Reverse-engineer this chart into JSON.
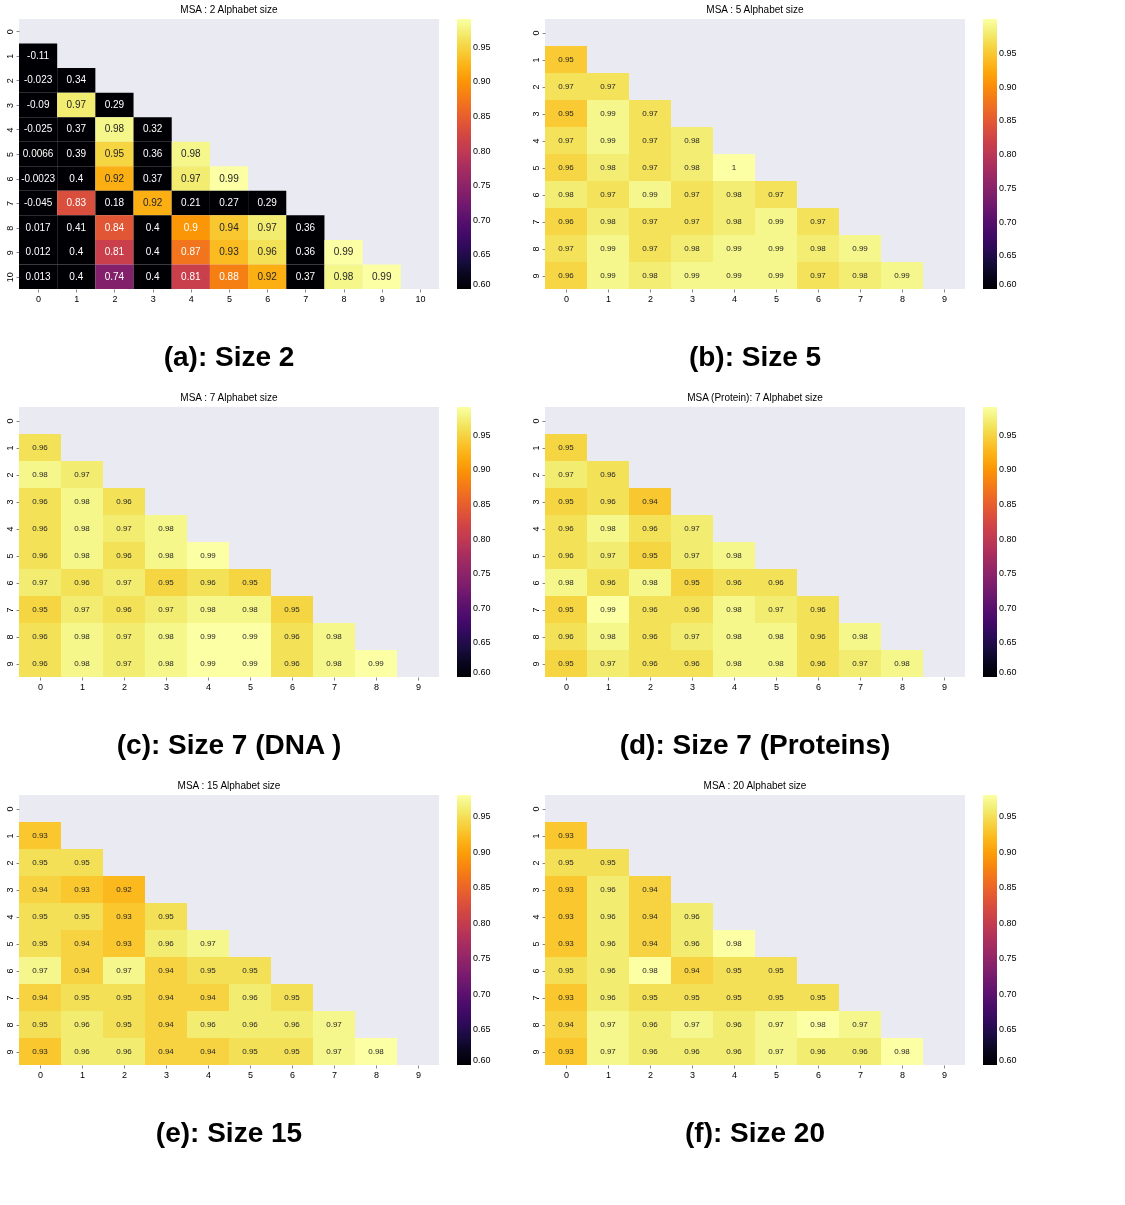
{
  "chart_data": [
    {
      "type": "heatmap",
      "title": "MSA : 2 Alphabet size",
      "annotations": [
        "(a): Size 2"
      ],
      "categories": [
        "0",
        "1",
        "2",
        "3",
        "4",
        "5",
        "6",
        "7",
        "8",
        "9",
        "10"
      ],
      "y_categories": [
        "0",
        "1",
        "2",
        "3",
        "4",
        "5",
        "6",
        "7",
        "8",
        "9",
        "10"
      ],
      "cells": [
        [
          null,
          null,
          null,
          null,
          null,
          null,
          null,
          null,
          null,
          null,
          null
        ],
        [
          -0.11,
          null,
          null,
          null,
          null,
          null,
          null,
          null,
          null,
          null,
          null
        ],
        [
          -0.023,
          0.34,
          null,
          null,
          null,
          null,
          null,
          null,
          null,
          null,
          null
        ],
        [
          -0.09,
          0.97,
          0.29,
          null,
          null,
          null,
          null,
          null,
          null,
          null,
          null
        ],
        [
          -0.025,
          0.37,
          0.98,
          0.32,
          null,
          null,
          null,
          null,
          null,
          null,
          null
        ],
        [
          0.0066,
          0.39,
          0.95,
          0.36,
          0.98,
          null,
          null,
          null,
          null,
          null,
          null
        ],
        [
          -0.0023,
          0.4,
          0.92,
          0.37,
          0.97,
          0.99,
          null,
          null,
          null,
          null,
          null
        ],
        [
          -0.045,
          0.83,
          0.18,
          0.92,
          0.21,
          0.27,
          0.29,
          null,
          null,
          null,
          null
        ],
        [
          0.017,
          0.41,
          0.84,
          0.4,
          0.9,
          0.94,
          0.97,
          0.36,
          null,
          null,
          null
        ],
        [
          0.012,
          0.4,
          0.81,
          0.4,
          0.87,
          0.93,
          0.96,
          0.36,
          0.99,
          null,
          null
        ],
        [
          0.013,
          0.4,
          0.74,
          0.4,
          0.81,
          0.88,
          0.92,
          0.37,
          0.98,
          0.99,
          null
        ]
      ],
      "clim": [
        0.6,
        0.99
      ],
      "cticks": [
        {
          "value": 0.6,
          "label": "0.60"
        },
        {
          "value": 0.65,
          "label": "0.65"
        },
        {
          "value": 0.7,
          "label": "0.70"
        },
        {
          "value": 0.75,
          "label": "0.75"
        },
        {
          "value": 0.8,
          "label": "0.80"
        },
        {
          "value": 0.85,
          "label": "0.85"
        },
        {
          "value": 0.9,
          "label": "0.90"
        },
        {
          "value": 0.95,
          "label": "0.95"
        }
      ],
      "data_labels": true
    },
    {
      "type": "heatmap",
      "title": "MSA : 5 Alphabet size",
      "annotations": [
        "(b): Size 5"
      ],
      "categories": [
        "0",
        "1",
        "2",
        "3",
        "4",
        "5",
        "6",
        "7",
        "8",
        "9"
      ],
      "y_categories": [
        "0",
        "1",
        "2",
        "3",
        "4",
        "5",
        "6",
        "7",
        "8",
        "9"
      ],
      "cells": [
        [
          null,
          null,
          null,
          null,
          null,
          null,
          null,
          null,
          null,
          null
        ],
        [
          0.95,
          null,
          null,
          null,
          null,
          null,
          null,
          null,
          null,
          null
        ],
        [
          0.97,
          0.97,
          null,
          null,
          null,
          null,
          null,
          null,
          null,
          null
        ],
        [
          0.95,
          0.99,
          0.97,
          null,
          null,
          null,
          null,
          null,
          null,
          null
        ],
        [
          0.97,
          0.99,
          0.97,
          0.98,
          null,
          null,
          null,
          null,
          null,
          null
        ],
        [
          0.96,
          0.98,
          0.97,
          0.98,
          1,
          null,
          null,
          null,
          null,
          null
        ],
        [
          0.98,
          0.97,
          0.99,
          0.97,
          0.98,
          0.97,
          null,
          null,
          null,
          null
        ],
        [
          0.96,
          0.98,
          0.97,
          0.97,
          0.98,
          0.99,
          0.97,
          null,
          null,
          null
        ],
        [
          0.97,
          0.99,
          0.97,
          0.98,
          0.99,
          0.99,
          0.98,
          0.99,
          null,
          null
        ],
        [
          0.96,
          0.99,
          0.98,
          0.99,
          0.99,
          0.99,
          0.97,
          0.98,
          0.99,
          null
        ]
      ],
      "clim": [
        0.6,
        1
      ],
      "cticks": [
        {
          "value": 0.6,
          "label": "0.60"
        },
        {
          "value": 0.65,
          "label": "0.65"
        },
        {
          "value": 0.7,
          "label": "0.70"
        },
        {
          "value": 0.75,
          "label": "0.75"
        },
        {
          "value": 0.8,
          "label": "0.80"
        },
        {
          "value": 0.85,
          "label": "0.85"
        },
        {
          "value": 0.9,
          "label": "0.90"
        },
        {
          "value": 0.95,
          "label": "0.95"
        }
      ],
      "data_labels": true
    },
    {
      "type": "heatmap",
      "title": "MSA : 7 Alphabet size",
      "annotations": [
        "(c): Size 7 (DNA )"
      ],
      "categories": [
        "0",
        "1",
        "2",
        "3",
        "4",
        "5",
        "6",
        "7",
        "8",
        "9"
      ],
      "y_categories": [
        "0",
        "1",
        "2",
        "3",
        "4",
        "5",
        "6",
        "7",
        "8",
        "9"
      ],
      "cells": [
        [
          null,
          null,
          null,
          null,
          null,
          null,
          null,
          null,
          null,
          null
        ],
        [
          0.96,
          null,
          null,
          null,
          null,
          null,
          null,
          null,
          null,
          null
        ],
        [
          0.98,
          0.97,
          null,
          null,
          null,
          null,
          null,
          null,
          null,
          null
        ],
        [
          0.96,
          0.98,
          0.96,
          null,
          null,
          null,
          null,
          null,
          null,
          null
        ],
        [
          0.96,
          0.98,
          0.97,
          0.98,
          null,
          null,
          null,
          null,
          null,
          null
        ],
        [
          0.96,
          0.98,
          0.96,
          0.98,
          0.99,
          null,
          null,
          null,
          null,
          null
        ],
        [
          0.97,
          0.96,
          0.97,
          0.95,
          0.96,
          0.95,
          null,
          null,
          null,
          null
        ],
        [
          0.95,
          0.97,
          0.96,
          0.97,
          0.98,
          0.98,
          0.95,
          null,
          null,
          null
        ],
        [
          0.96,
          0.98,
          0.97,
          0.98,
          0.99,
          0.99,
          0.96,
          0.98,
          null,
          null
        ],
        [
          0.96,
          0.98,
          0.97,
          0.98,
          0.99,
          0.99,
          0.96,
          0.98,
          0.99,
          null
        ]
      ],
      "clim": [
        0.6,
        0.99
      ],
      "cticks": [
        {
          "value": 0.6,
          "label": "0.60"
        },
        {
          "value": 0.65,
          "label": "0.65"
        },
        {
          "value": 0.7,
          "label": "0.70"
        },
        {
          "value": 0.75,
          "label": "0.75"
        },
        {
          "value": 0.8,
          "label": "0.80"
        },
        {
          "value": 0.85,
          "label": "0.85"
        },
        {
          "value": 0.9,
          "label": "0.90"
        },
        {
          "value": 0.95,
          "label": "0.95"
        }
      ],
      "data_labels": true
    },
    {
      "type": "heatmap",
      "title": "MSA (Protein): 7 Alphabet size",
      "annotations": [
        "(d): Size 7 (Proteins)"
      ],
      "categories": [
        "0",
        "1",
        "2",
        "3",
        "4",
        "5",
        "6",
        "7",
        "8",
        "9"
      ],
      "y_categories": [
        "0",
        "1",
        "2",
        "3",
        "4",
        "5",
        "6",
        "7",
        "8",
        "9"
      ],
      "cells": [
        [
          null,
          null,
          null,
          null,
          null,
          null,
          null,
          null,
          null,
          null
        ],
        [
          0.95,
          null,
          null,
          null,
          null,
          null,
          null,
          null,
          null,
          null
        ],
        [
          0.97,
          0.96,
          null,
          null,
          null,
          null,
          null,
          null,
          null,
          null
        ],
        [
          0.95,
          0.96,
          0.94,
          null,
          null,
          null,
          null,
          null,
          null,
          null
        ],
        [
          0.96,
          0.98,
          0.96,
          0.97,
          null,
          null,
          null,
          null,
          null,
          null
        ],
        [
          0.96,
          0.97,
          0.95,
          0.97,
          0.98,
          null,
          null,
          null,
          null,
          null
        ],
        [
          0.98,
          0.96,
          0.98,
          0.95,
          0.96,
          0.96,
          null,
          null,
          null,
          null
        ],
        [
          0.95,
          0.99,
          0.96,
          0.96,
          0.98,
          0.97,
          0.96,
          null,
          null,
          null
        ],
        [
          0.96,
          0.98,
          0.96,
          0.97,
          0.98,
          0.98,
          0.96,
          0.98,
          null,
          null
        ],
        [
          0.95,
          0.97,
          0.96,
          0.96,
          0.98,
          0.98,
          0.96,
          0.97,
          0.98,
          null
        ]
      ],
      "clim": [
        0.6,
        0.99
      ],
      "cticks": [
        {
          "value": 0.6,
          "label": "0.60"
        },
        {
          "value": 0.65,
          "label": "0.65"
        },
        {
          "value": 0.7,
          "label": "0.70"
        },
        {
          "value": 0.75,
          "label": "0.75"
        },
        {
          "value": 0.8,
          "label": "0.80"
        },
        {
          "value": 0.85,
          "label": "0.85"
        },
        {
          "value": 0.9,
          "label": "0.90"
        },
        {
          "value": 0.95,
          "label": "0.95"
        }
      ],
      "data_labels": true
    },
    {
      "type": "heatmap",
      "title": "MSA : 15 Alphabet size",
      "annotations": [
        "(e): Size 15"
      ],
      "categories": [
        "0",
        "1",
        "2",
        "3",
        "4",
        "5",
        "6",
        "7",
        "8",
        "9"
      ],
      "y_categories": [
        "0",
        "1",
        "2",
        "3",
        "4",
        "5",
        "6",
        "7",
        "8",
        "9"
      ],
      "cells": [
        [
          null,
          null,
          null,
          null,
          null,
          null,
          null,
          null,
          null,
          null
        ],
        [
          0.93,
          null,
          null,
          null,
          null,
          null,
          null,
          null,
          null,
          null
        ],
        [
          0.95,
          0.95,
          null,
          null,
          null,
          null,
          null,
          null,
          null,
          null
        ],
        [
          0.94,
          0.93,
          0.92,
          null,
          null,
          null,
          null,
          null,
          null,
          null
        ],
        [
          0.95,
          0.95,
          0.93,
          0.95,
          null,
          null,
          null,
          null,
          null,
          null
        ],
        [
          0.95,
          0.94,
          0.93,
          0.96,
          0.97,
          null,
          null,
          null,
          null,
          null
        ],
        [
          0.97,
          0.94,
          0.97,
          0.94,
          0.95,
          0.95,
          null,
          null,
          null,
          null
        ],
        [
          0.94,
          0.95,
          0.95,
          0.94,
          0.94,
          0.96,
          0.95,
          null,
          null,
          null
        ],
        [
          0.95,
          0.96,
          0.95,
          0.94,
          0.96,
          0.96,
          0.96,
          0.97,
          null,
          null
        ],
        [
          0.93,
          0.96,
          0.96,
          0.94,
          0.94,
          0.95,
          0.95,
          0.97,
          0.98,
          null
        ]
      ],
      "clim": [
        0.6,
        0.98
      ],
      "cticks": [
        {
          "value": 0.6,
          "label": "0.60"
        },
        {
          "value": 0.65,
          "label": "0.65"
        },
        {
          "value": 0.7,
          "label": "0.70"
        },
        {
          "value": 0.75,
          "label": "0.75"
        },
        {
          "value": 0.8,
          "label": "0.80"
        },
        {
          "value": 0.85,
          "label": "0.85"
        },
        {
          "value": 0.9,
          "label": "0.90"
        },
        {
          "value": 0.95,
          "label": "0.95"
        }
      ],
      "data_labels": true
    },
    {
      "type": "heatmap",
      "title": "MSA : 20 Alphabet size",
      "annotations": [
        "(f): Size 20"
      ],
      "categories": [
        "0",
        "1",
        "2",
        "3",
        "4",
        "5",
        "6",
        "7",
        "8",
        "9"
      ],
      "y_categories": [
        "0",
        "1",
        "2",
        "3",
        "4",
        "5",
        "6",
        "7",
        "8",
        "9"
      ],
      "cells": [
        [
          null,
          null,
          null,
          null,
          null,
          null,
          null,
          null,
          null,
          null
        ],
        [
          0.93,
          null,
          null,
          null,
          null,
          null,
          null,
          null,
          null,
          null
        ],
        [
          0.95,
          0.95,
          null,
          null,
          null,
          null,
          null,
          null,
          null,
          null
        ],
        [
          0.93,
          0.96,
          0.94,
          null,
          null,
          null,
          null,
          null,
          null,
          null
        ],
        [
          0.93,
          0.96,
          0.94,
          0.96,
          null,
          null,
          null,
          null,
          null,
          null
        ],
        [
          0.93,
          0.96,
          0.94,
          0.96,
          0.98,
          null,
          null,
          null,
          null,
          null
        ],
        [
          0.95,
          0.96,
          0.98,
          0.94,
          0.95,
          0.95,
          null,
          null,
          null,
          null
        ],
        [
          0.93,
          0.96,
          0.95,
          0.95,
          0.95,
          0.95,
          0.95,
          null,
          null,
          null
        ],
        [
          0.94,
          0.97,
          0.96,
          0.97,
          0.96,
          0.97,
          0.98,
          0.97,
          null,
          null
        ],
        [
          0.93,
          0.97,
          0.96,
          0.96,
          0.96,
          0.97,
          0.96,
          0.96,
          0.98,
          null
        ]
      ],
      "clim": [
        0.6,
        0.98
      ],
      "cticks": [
        {
          "value": 0.6,
          "label": "0.60"
        },
        {
          "value": 0.65,
          "label": "0.65"
        },
        {
          "value": 0.7,
          "label": "0.70"
        },
        {
          "value": 0.75,
          "label": "0.75"
        },
        {
          "value": 0.8,
          "label": "0.80"
        },
        {
          "value": 0.85,
          "label": "0.85"
        },
        {
          "value": 0.9,
          "label": "0.90"
        },
        {
          "value": 0.95,
          "label": "0.95"
        }
      ],
      "data_labels": true
    }
  ]
}
